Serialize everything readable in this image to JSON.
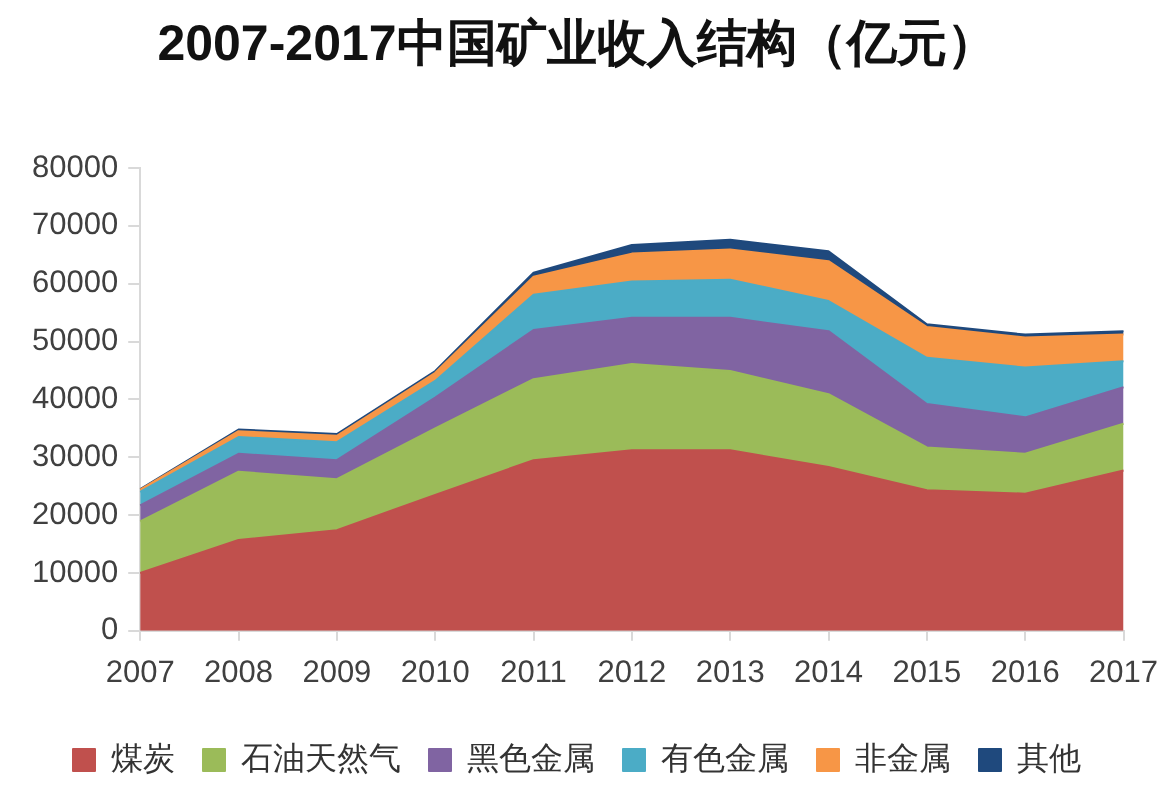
{
  "chart_data": {
    "type": "area",
    "title": "2007-2017中国矿业收入结构（亿元）",
    "categories": [
      "2007",
      "2008",
      "2009",
      "2010",
      "2011",
      "2012",
      "2013",
      "2014",
      "2015",
      "2016",
      "2017"
    ],
    "stacked": true,
    "series": [
      {
        "name": "煤炭",
        "color": "#c0504d",
        "values": [
          10000,
          15700,
          17400,
          23500,
          29500,
          31200,
          31200,
          28300,
          24300,
          23700,
          27700
        ]
      },
      {
        "name": "石油天然气",
        "color": "#9bbb59",
        "values": [
          8900,
          11800,
          8800,
          11500,
          14000,
          14900,
          13700,
          12600,
          7400,
          6900,
          8100
        ]
      },
      {
        "name": "黑色金属",
        "color": "#8064a2",
        "values": [
          2800,
          3100,
          3300,
          5300,
          8500,
          8000,
          9200,
          10900,
          7500,
          6300,
          6300
        ]
      },
      {
        "name": "有色金属",
        "color": "#4bacc6",
        "values": [
          2300,
          2900,
          3100,
          2900,
          6100,
          6300,
          6600,
          5200,
          8000,
          8600,
          4500
        ]
      },
      {
        "name": "非金属",
        "color": "#f79646",
        "values": [
          400,
          1000,
          1100,
          1400,
          3100,
          4800,
          5200,
          6900,
          5300,
          5200,
          4600
        ]
      },
      {
        "name": "其他",
        "color": "#1f497d",
        "values": [
          100,
          300,
          300,
          300,
          700,
          1500,
          1700,
          1700,
          500,
          500,
          600
        ]
      }
    ],
    "ylim": [
      0,
      80000
    ],
    "yticks": [
      0,
      10000,
      20000,
      30000,
      40000,
      50000,
      60000,
      70000,
      80000
    ],
    "grid": false,
    "legend": "bottom"
  }
}
